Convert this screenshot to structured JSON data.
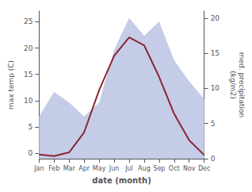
{
  "chart_data": {
    "type": "line",
    "categories": [
      "Jan",
      "Feb",
      "Mar",
      "Apr",
      "May",
      "Jun",
      "Jul",
      "Aug",
      "Sep",
      "Oct",
      "Nov",
      "Dec"
    ],
    "series": [
      {
        "type": "area",
        "axis": "y2",
        "color": "#c5cce8",
        "values": [
          6.0,
          9.5,
          8.0,
          6.0,
          8.0,
          15.5,
          20.0,
          17.5,
          19.5,
          14.0,
          11.0,
          8.5
        ]
      },
      {
        "type": "line",
        "color": "#8B2535",
        "values": [
          -0.2,
          -0.5,
          0.2,
          4.0,
          12.0,
          18.5,
          22.0,
          20.5,
          14.5,
          7.5,
          2.5,
          -0.3
        ]
      }
    ],
    "xlabel": "date (month)",
    "ylabel": "max temp (C)",
    "y2label": "med. precipitation\n(kg/m2)",
    "ylim": [
      -1,
      27
    ],
    "yticks": [
      0,
      5,
      10,
      15,
      20,
      25
    ],
    "y2lim": [
      0,
      21
    ],
    "y2ticks": [
      0,
      5,
      10,
      15,
      20
    ],
    "grid": false
  }
}
